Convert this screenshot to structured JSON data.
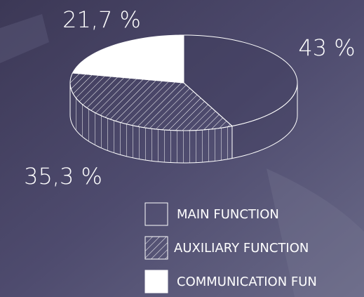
{
  "chart_data": {
    "type": "pie",
    "categories": [
      "MAIN FUNCTION",
      "AUXILIARY FUNCTION",
      "COMMUNICATION FUN"
    ],
    "values": [
      43,
      35.3,
      21.7
    ],
    "value_labels": [
      "43 %",
      "35,3 %",
      "21,7 %"
    ]
  }
}
